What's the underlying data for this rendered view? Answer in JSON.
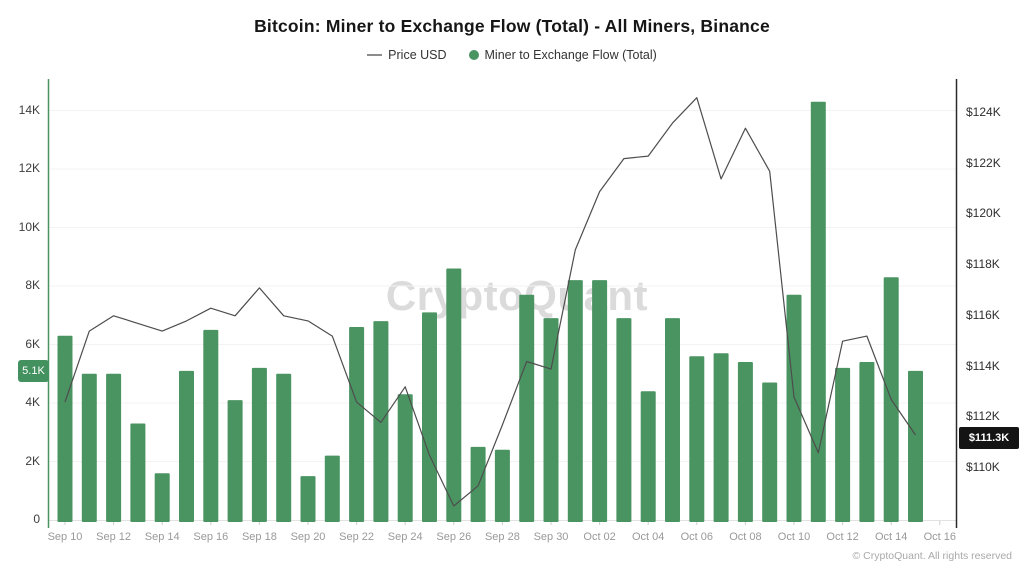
{
  "title": "Bitcoin: Miner to Exchange Flow (Total) - All Miners, Binance",
  "legend": {
    "price_label": "Price USD",
    "flow_label": "Miner to Exchange Flow (Total)"
  },
  "watermark": "CryptoQuant",
  "copyright": "© CryptoQuant. All rights reserved",
  "badges": {
    "flow_current": "5.1K",
    "price_current": "$111.3K"
  },
  "colors": {
    "bar": "#4a9462",
    "price_line": "#4d4d4d",
    "left_axis": "#4a9462",
    "right_axis": "#2b2b2b",
    "grid": "#f3f3f3",
    "baseline": "#e2e2e2",
    "tick": "#cccccc",
    "flow_badge_bg": "#43915f",
    "price_badge_bg": "#141414"
  },
  "chart_data": {
    "type": "bar",
    "title": "Bitcoin: Miner to Exchange Flow (Total) - All Miners, Binance",
    "x": [
      "Sep 10",
      "Sep 11",
      "Sep 12",
      "Sep 13",
      "Sep 14",
      "Sep 15",
      "Sep 16",
      "Sep 17",
      "Sep 18",
      "Sep 19",
      "Sep 20",
      "Sep 21",
      "Sep 22",
      "Sep 23",
      "Sep 24",
      "Sep 25",
      "Sep 26",
      "Sep 27",
      "Sep 28",
      "Sep 29",
      "Sep 30",
      "Oct 01",
      "Oct 02",
      "Oct 03",
      "Oct 04",
      "Oct 05",
      "Oct 06",
      "Oct 07",
      "Oct 08",
      "Oct 09",
      "Oct 10",
      "Oct 11",
      "Oct 12",
      "Oct 13",
      "Oct 14",
      "Oct 15"
    ],
    "series": [
      {
        "name": "Miner to Exchange Flow (Total)",
        "type": "bar",
        "axis": "left",
        "unit": "K BTC-flow",
        "values": [
          6.3,
          5.0,
          5.0,
          3.3,
          1.6,
          5.1,
          6.5,
          4.1,
          5.2,
          5.0,
          1.5,
          2.2,
          6.6,
          6.8,
          4.3,
          7.1,
          8.6,
          2.5,
          2.4,
          7.7,
          6.9,
          8.2,
          8.2,
          6.9,
          4.4,
          6.9,
          5.6,
          5.7,
          5.4,
          4.7,
          7.7,
          14.3,
          5.2,
          5.4,
          8.3,
          5.1
        ]
      },
      {
        "name": "Price USD",
        "type": "line",
        "axis": "right",
        "unit": "K USD",
        "values": [
          112.6,
          115.4,
          116.0,
          115.7,
          115.4,
          115.8,
          116.3,
          116.0,
          117.1,
          116.0,
          115.8,
          115.2,
          112.6,
          111.8,
          113.2,
          110.5,
          108.5,
          109.3,
          111.7,
          114.2,
          113.9,
          118.6,
          120.9,
          122.2,
          122.3,
          123.6,
          124.6,
          121.4,
          123.4,
          121.7,
          112.8,
          110.6,
          115.0,
          115.2,
          112.7,
          111.3
        ]
      }
    ],
    "x_tick_labels": [
      "Sep 10",
      "Sep 12",
      "Sep 14",
      "Sep 16",
      "Sep 18",
      "Sep 20",
      "Sep 22",
      "Sep 24",
      "Sep 26",
      "Sep 28",
      "Sep 30",
      "Oct 02",
      "Oct 04",
      "Oct 06",
      "Oct 08",
      "Oct 10",
      "Oct 12",
      "Oct 14",
      "Oct 16"
    ],
    "left_axis": {
      "label_ticks": [
        "0",
        "2K",
        "4K",
        "6K",
        "8K",
        "10K",
        "12K",
        "14K"
      ],
      "tick_values": [
        0,
        2,
        4,
        6,
        8,
        10,
        12,
        14
      ],
      "range": [
        0,
        15
      ],
      "latest_value": "5.1K"
    },
    "right_axis": {
      "label_ticks": [
        "$110K",
        "$112K",
        "$114K",
        "$116K",
        "$118K",
        "$120K",
        "$122K",
        "$124K"
      ],
      "tick_values": [
        110,
        112,
        114,
        116,
        118,
        120,
        122,
        124
      ],
      "range": [
        108,
        125.5
      ],
      "latest_value": "$111.3K"
    },
    "grid": "horizontal-only",
    "legend_position": "top-center"
  }
}
